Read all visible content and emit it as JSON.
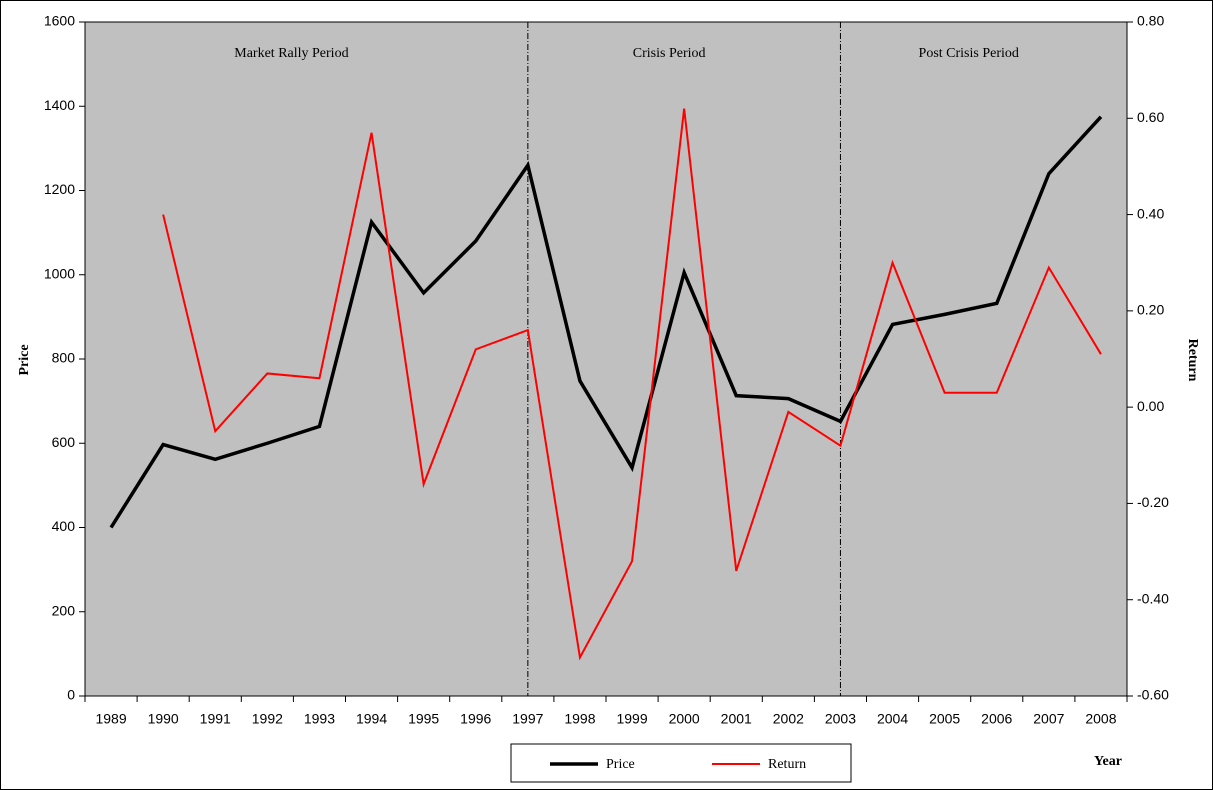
{
  "chart_data": {
    "type": "line",
    "categories": [
      "1989",
      "1990",
      "1991",
      "1992",
      "1993",
      "1994",
      "1995",
      "1996",
      "1997",
      "1998",
      "1999",
      "2000",
      "2001",
      "2002",
      "2003",
      "2004",
      "2005",
      "2006",
      "2007",
      "2008"
    ],
    "series": [
      {
        "name": "Price",
        "color": "#000000",
        "values": [
          400,
          597,
          562,
          600,
          640,
          1125,
          957,
          1080,
          1260,
          748,
          542,
          1005,
          713,
          706,
          652,
          882,
          906,
          932,
          1240,
          1375
        ]
      },
      {
        "name": "Return",
        "color": "#ff0000",
        "axis": "y2",
        "values": [
          null,
          0.4,
          -0.05,
          0.07,
          0.06,
          0.57,
          -0.16,
          0.12,
          0.16,
          -0.52,
          -0.32,
          0.62,
          -0.34,
          -0.01,
          -0.08,
          0.3,
          0.03,
          0.03,
          0.29,
          0.11
        ]
      }
    ],
    "ylabel": "Price",
    "y2label": "Return",
    "xlabel": "Year",
    "ylim": [
      0,
      1600
    ],
    "yticks": [
      0,
      200,
      400,
      600,
      800,
      1000,
      1200,
      1400,
      1600
    ],
    "y2lim": [
      -0.6,
      0.8
    ],
    "y2ticks": [
      {
        "value": -0.6,
        "label": "-0.60"
      },
      {
        "value": -0.4,
        "label": "-0.40"
      },
      {
        "value": -0.2,
        "label": "-0.20"
      },
      {
        "value": 0,
        "label": "0.00"
      },
      {
        "value": 0.2,
        "label": "0.20"
      },
      {
        "value": 0.4,
        "label": "0.40"
      },
      {
        "value": 0.6,
        "label": "0.60"
      },
      {
        "value": 0.8,
        "label": "0.80"
      }
    ],
    "dividers": [
      "1997",
      "2003"
    ],
    "periods": [
      "Market Rally Period",
      "Crisis Period",
      "Post Crisis Period"
    ],
    "annotation": ".",
    "plot_background": "#c0c0c0",
    "legend": "bottom"
  }
}
